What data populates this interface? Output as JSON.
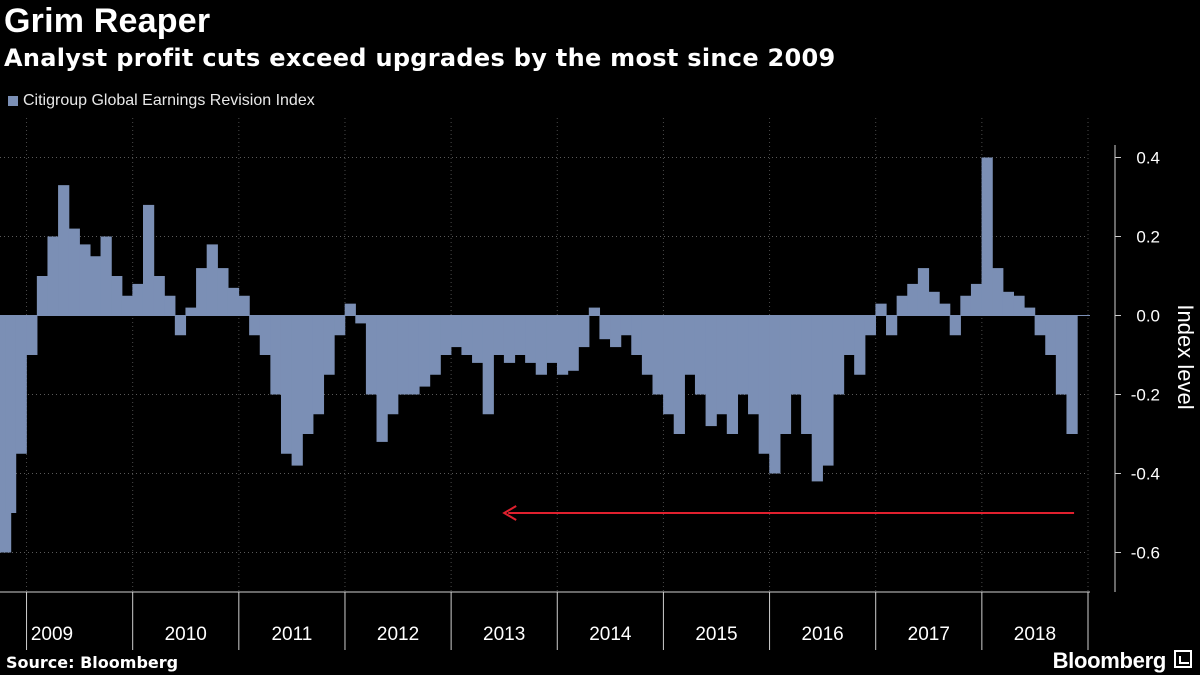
{
  "header": {
    "title": "Grim Reaper",
    "subtitle": "Analyst profit cuts exceed upgrades by the most since 2009"
  },
  "legend": {
    "label": "Citigroup Global Earnings Revision Index"
  },
  "footer": {
    "source": "Source: Bloomberg",
    "brand": "Bloomberg"
  },
  "colors": {
    "bar": "#7b8fb5",
    "arrow": "#e0202e",
    "background": "#000000"
  },
  "chart_data": {
    "type": "bar",
    "title": "Grim Reaper",
    "subtitle": "Analyst profit cuts exceed upgrades by the most since 2009",
    "ylabel": "Index level",
    "xlabel": "",
    "ylim": [
      -0.7,
      0.5
    ],
    "yticks": [
      -0.6,
      -0.4,
      -0.2,
      0.0,
      0.2,
      0.4
    ],
    "ytick_labels": [
      "-0.6",
      "-0.4",
      "-0.2",
      "0.0",
      "0.2",
      "0.4"
    ],
    "x_tick_labels": [
      "2009",
      "2010",
      "2011",
      "2012",
      "2013",
      "2014",
      "2015",
      "2016",
      "2017",
      "2018"
    ],
    "grid": true,
    "legend_position": "top-left",
    "annotation": {
      "type": "arrow",
      "value": -0.5,
      "direction": "left",
      "ends_at_year": 2013.5
    },
    "series": [
      {
        "name": "Citigroup Global Earnings Revision Index",
        "x": [
          2008.75,
          2008.85,
          2008.95,
          2009.05,
          2009.15,
          2009.25,
          2009.35,
          2009.45,
          2009.55,
          2009.65,
          2009.75,
          2009.85,
          2009.95,
          2010.05,
          2010.15,
          2010.25,
          2010.35,
          2010.45,
          2010.55,
          2010.65,
          2010.75,
          2010.85,
          2010.95,
          2011.05,
          2011.15,
          2011.25,
          2011.35,
          2011.45,
          2011.55,
          2011.65,
          2011.75,
          2011.85,
          2011.95,
          2012.05,
          2012.15,
          2012.25,
          2012.35,
          2012.45,
          2012.55,
          2012.65,
          2012.75,
          2012.85,
          2012.95,
          2013.05,
          2013.15,
          2013.25,
          2013.35,
          2013.45,
          2013.55,
          2013.65,
          2013.75,
          2013.85,
          2013.95,
          2014.05,
          2014.15,
          2014.25,
          2014.35,
          2014.45,
          2014.55,
          2014.65,
          2014.75,
          2014.85,
          2014.95,
          2015.05,
          2015.15,
          2015.25,
          2015.35,
          2015.45,
          2015.55,
          2015.65,
          2015.75,
          2015.85,
          2015.95,
          2016.05,
          2016.15,
          2016.25,
          2016.35,
          2016.45,
          2016.55,
          2016.65,
          2016.75,
          2016.85,
          2016.95,
          2017.05,
          2017.15,
          2017.25,
          2017.35,
          2017.45,
          2017.55,
          2017.65,
          2017.75,
          2017.85,
          2017.95,
          2018.05,
          2018.15,
          2018.25,
          2018.35,
          2018.45,
          2018.55,
          2018.65,
          2018.75,
          2018.85
        ],
        "values": [
          -0.6,
          -0.5,
          -0.35,
          -0.1,
          0.1,
          0.2,
          0.33,
          0.22,
          0.18,
          0.15,
          0.2,
          0.1,
          0.05,
          0.08,
          0.28,
          0.1,
          0.05,
          -0.05,
          0.02,
          0.12,
          0.18,
          0.12,
          0.07,
          0.05,
          -0.05,
          -0.1,
          -0.2,
          -0.35,
          -0.38,
          -0.3,
          -0.25,
          -0.15,
          -0.05,
          0.03,
          -0.02,
          -0.2,
          -0.32,
          -0.25,
          -0.2,
          -0.2,
          -0.18,
          -0.15,
          -0.1,
          -0.08,
          -0.1,
          -0.12,
          -0.25,
          -0.1,
          -0.12,
          -0.1,
          -0.12,
          -0.15,
          -0.12,
          -0.15,
          -0.14,
          -0.08,
          0.02,
          -0.06,
          -0.08,
          -0.05,
          -0.1,
          -0.15,
          -0.2,
          -0.25,
          -0.3,
          -0.15,
          -0.2,
          -0.28,
          -0.25,
          -0.3,
          -0.2,
          -0.25,
          -0.35,
          -0.4,
          -0.3,
          -0.2,
          -0.3,
          -0.42,
          -0.38,
          -0.2,
          -0.1,
          -0.15,
          -0.05,
          0.03,
          -0.05,
          0.05,
          0.08,
          0.12,
          0.06,
          0.03,
          -0.05,
          0.05,
          0.08,
          0.4,
          0.12,
          0.06,
          0.05,
          0.02,
          -0.05,
          -0.1,
          -0.2,
          -0.3
        ]
      }
    ]
  }
}
